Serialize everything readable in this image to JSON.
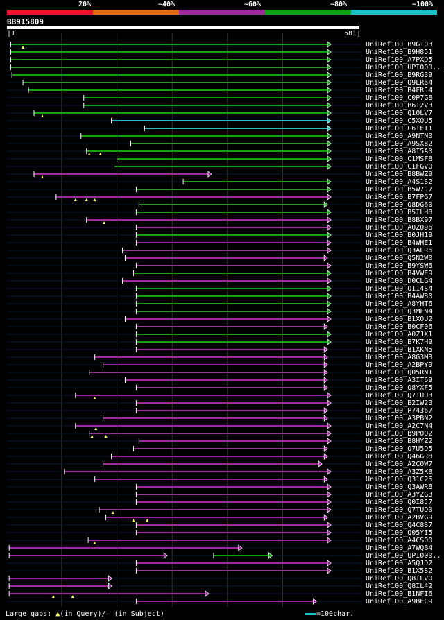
{
  "colors": {
    "c20": "#e8142c",
    "c40": "#e06d1a",
    "c60": "#9c2a9c",
    "c80": "#13a013",
    "c100": "#1fbec6",
    "bg": "#000000",
    "grid": "#333333",
    "row": "#0a1a3a"
  },
  "legend": {
    "p20": "20%",
    "p40": "~40%",
    "p60": "~60%",
    "p80": "~80%",
    "p100": "~100%"
  },
  "query": {
    "id": "BB915809",
    "start": "1",
    "end": "581",
    "length": 581
  },
  "footer": {
    "gaps_label": "Large gaps:",
    "query_text": "(in Query)/",
    "subject_text": "(in Subject)",
    "scale_text": "=100char."
  },
  "hits": [
    {
      "name": "UniRef100_B9GT03",
      "s": 8,
      "e": 581,
      "c": "c80",
      "marks": [
        30
      ]
    },
    {
      "name": "UniRef100_B9H851",
      "s": 8,
      "e": 581,
      "c": "c80",
      "marks": []
    },
    {
      "name": "UniRef100_A7PXD5",
      "s": 8,
      "e": 581,
      "c": "c80",
      "marks": []
    },
    {
      "name": "UniRef100_UPI000..",
      "s": 8,
      "e": 581,
      "c": "c80",
      "marks": []
    },
    {
      "name": "UniRef100_B9RG39",
      "s": 10,
      "e": 581,
      "c": "c80",
      "marks": []
    },
    {
      "name": "UniRef100_Q9LR64",
      "s": 30,
      "e": 581,
      "c": "c80",
      "marks": []
    },
    {
      "name": "UniRef100_B4FRJ4",
      "s": 40,
      "e": 581,
      "c": "c80",
      "marks": []
    },
    {
      "name": "UniRef100_C0P7G8",
      "s": 140,
      "e": 581,
      "c": "c80",
      "marks": []
    },
    {
      "name": "UniRef100_B6T2V3",
      "s": 140,
      "e": 581,
      "c": "c80",
      "marks": []
    },
    {
      "name": "UniRef100_Q10LV7",
      "s": 50,
      "e": 581,
      "c": "c80",
      "marks": [
        65
      ]
    },
    {
      "name": "UniRef100_C5XOU5",
      "s": 190,
      "e": 581,
      "c": "c100",
      "marks": []
    },
    {
      "name": "UniRef100_C6TEI1",
      "s": 250,
      "e": 581,
      "c": "c100",
      "marks": []
    },
    {
      "name": "UniRef100_A9NTN0",
      "s": 135,
      "e": 581,
      "c": "c80",
      "marks": []
    },
    {
      "name": "UniRef100_A9SX82",
      "s": 225,
      "e": 581,
      "c": "c80",
      "marks": []
    },
    {
      "name": "UniRef100_A8I5A0",
      "s": 145,
      "e": 581,
      "c": "c80",
      "marks": [
        150,
        170
      ]
    },
    {
      "name": "UniRef100_C1MSF8",
      "s": 200,
      "e": 581,
      "c": "c80",
      "marks": []
    },
    {
      "name": "UniRef100_C1FGV0",
      "s": 195,
      "e": 581,
      "c": "c80",
      "marks": []
    },
    {
      "name": "UniRef100_B8BWZ9",
      "s": 50,
      "e": 365,
      "c": "c60",
      "marks": [
        65
      ]
    },
    {
      "name": "UniRef100_A4S1S2",
      "s": 320,
      "e": 581,
      "c": "c80",
      "marks": []
    },
    {
      "name": "UniRef100_B5W7J7",
      "s": 235,
      "e": 581,
      "c": "c80",
      "marks": []
    },
    {
      "name": "UniRef100_B7FPG7",
      "s": 90,
      "e": 581,
      "c": "c60",
      "marks": [
        125,
        145,
        160
      ]
    },
    {
      "name": "UniRef100_Q8DG60",
      "s": 240,
      "e": 575,
      "c": "c80",
      "marks": []
    },
    {
      "name": "UniRef100_B5ILH8",
      "s": 235,
      "e": 581,
      "c": "c80",
      "marks": []
    },
    {
      "name": "UniRef100_B8BX97",
      "s": 145,
      "e": 581,
      "c": "c60",
      "marks": [
        177
      ]
    },
    {
      "name": "UniRef100_A0Z096",
      "s": 235,
      "e": 581,
      "c": "c60",
      "marks": []
    },
    {
      "name": "UniRef100_B0JH19",
      "s": 235,
      "e": 581,
      "c": "c80",
      "marks": []
    },
    {
      "name": "UniRef100_B4WHE1",
      "s": 235,
      "e": 581,
      "c": "c60",
      "marks": []
    },
    {
      "name": "UniRef100_Q3ALR6",
      "s": 210,
      "e": 581,
      "c": "c60",
      "marks": []
    },
    {
      "name": "UniRef100_Q5N2W0",
      "s": 215,
      "e": 575,
      "c": "c60",
      "marks": []
    },
    {
      "name": "UniRef100_B9YSW6",
      "s": 235,
      "e": 581,
      "c": "c60",
      "marks": []
    },
    {
      "name": "UniRef100_B4VWE9",
      "s": 230,
      "e": 581,
      "c": "c80",
      "marks": []
    },
    {
      "name": "UniRef100_D0CLG4",
      "s": 210,
      "e": 581,
      "c": "c60",
      "marks": []
    },
    {
      "name": "UniRef100_Q114S4",
      "s": 235,
      "e": 581,
      "c": "c80",
      "marks": []
    },
    {
      "name": "UniRef100_B4AW80",
      "s": 235,
      "e": 581,
      "c": "c80",
      "marks": []
    },
    {
      "name": "UniRef100_A8YHT6",
      "s": 235,
      "e": 581,
      "c": "c80",
      "marks": []
    },
    {
      "name": "UniRef100_Q3MFN4",
      "s": 235,
      "e": 581,
      "c": "c80",
      "marks": []
    },
    {
      "name": "UniRef100_B1XOU2",
      "s": 215,
      "e": 581,
      "c": "c60",
      "marks": []
    },
    {
      "name": "UniRef100_B0CF06",
      "s": 235,
      "e": 575,
      "c": "c60",
      "marks": []
    },
    {
      "name": "UniRef100_A0ZJX1",
      "s": 235,
      "e": 581,
      "c": "c80",
      "marks": []
    },
    {
      "name": "UniRef100_B7K7H9",
      "s": 235,
      "e": 581,
      "c": "c80",
      "marks": []
    },
    {
      "name": "UniRef100_B1XKN5",
      "s": 235,
      "e": 575,
      "c": "c60",
      "marks": []
    },
    {
      "name": "UniRef100_A8G3M3",
      "s": 160,
      "e": 575,
      "c": "c60",
      "marks": []
    },
    {
      "name": "UniRef100_A2BPY9",
      "s": 175,
      "e": 575,
      "c": "c60",
      "marks": []
    },
    {
      "name": "UniRef100_Q05RN1",
      "s": 150,
      "e": 575,
      "c": "c60",
      "marks": []
    },
    {
      "name": "UniRef100_A3IT69",
      "s": 215,
      "e": 575,
      "c": "c60",
      "marks": []
    },
    {
      "name": "UniRef100_Q8YXF5",
      "s": 235,
      "e": 575,
      "c": "c60",
      "marks": []
    },
    {
      "name": "UniRef100_Q7TUU3",
      "s": 125,
      "e": 581,
      "c": "c60",
      "marks": [
        160
      ]
    },
    {
      "name": "UniRef100_B2IW23",
      "s": 235,
      "e": 581,
      "c": "c60",
      "marks": []
    },
    {
      "name": "UniRef100_P74367",
      "s": 235,
      "e": 575,
      "c": "c60",
      "marks": []
    },
    {
      "name": "UniRef100_A3PBN2",
      "s": 175,
      "e": 575,
      "c": "c60",
      "marks": []
    },
    {
      "name": "UniRef100_A2C7N4",
      "s": 125,
      "e": 581,
      "c": "c60",
      "marks": [
        162
      ]
    },
    {
      "name": "UniRef100_B9P0Q2",
      "s": 150,
      "e": 581,
      "c": "c60",
      "marks": [
        155,
        180
      ]
    },
    {
      "name": "UniRef100_B8HYZ2",
      "s": 240,
      "e": 581,
      "c": "c60",
      "marks": []
    },
    {
      "name": "UniRef100_Q7U5D5",
      "s": 230,
      "e": 575,
      "c": "c60",
      "marks": []
    },
    {
      "name": "UniRef100_Q46GR8",
      "s": 190,
      "e": 575,
      "c": "c60",
      "marks": []
    },
    {
      "name": "UniRef100_A2C0W7",
      "s": 175,
      "e": 565,
      "c": "c60",
      "marks": []
    },
    {
      "name": "UniRef100_A3Z5K8",
      "s": 105,
      "e": 581,
      "c": "c60",
      "marks": []
    },
    {
      "name": "UniRef100_Q31C26",
      "s": 160,
      "e": 575,
      "c": "c60",
      "marks": []
    },
    {
      "name": "UniRef100_Q3AWR8",
      "s": 235,
      "e": 581,
      "c": "c60",
      "marks": []
    },
    {
      "name": "UniRef100_A3YZG3",
      "s": 235,
      "e": 581,
      "c": "c60",
      "marks": []
    },
    {
      "name": "UniRef100_Q0I8J7",
      "s": 235,
      "e": 581,
      "c": "c60",
      "marks": []
    },
    {
      "name": "UniRef100_Q7TUD0",
      "s": 168,
      "e": 581,
      "c": "c60",
      "marks": [
        193
      ]
    },
    {
      "name": "UniRef100_A2BVG9",
      "s": 180,
      "e": 575,
      "c": "c60",
      "marks": [
        230,
        255
      ]
    },
    {
      "name": "UniRef100_Q4C8S7",
      "s": 235,
      "e": 581,
      "c": "c60",
      "marks": []
    },
    {
      "name": "UniRef100_Q05YI5",
      "s": 235,
      "e": 581,
      "c": "c60",
      "marks": []
    },
    {
      "name": "UniRef100_A4CS00",
      "s": 148,
      "e": 581,
      "c": "c60",
      "marks": [
        160
      ]
    },
    {
      "name": "UniRef100_A7WQB4",
      "s": 5,
      "e": 420,
      "c": "c60",
      "marks": []
    },
    {
      "name": "UniRef100_UPI000..",
      "s": 5,
      "e": 285,
      "c": "c60",
      "marks": [],
      "s2": 375,
      "e2": 475,
      "c2": "c80"
    },
    {
      "name": "UniRef100_A5QJD2",
      "s": 235,
      "e": 581,
      "c": "c60",
      "marks": []
    },
    {
      "name": "UniRef100_B1X5S2",
      "s": 235,
      "e": 581,
      "c": "c60",
      "marks": []
    },
    {
      "name": "UniRef100_Q8ILV0",
      "s": 5,
      "e": 185,
      "c": "c60",
      "marks": []
    },
    {
      "name": "UniRef100_Q8IL42",
      "s": 5,
      "e": 185,
      "c": "c60",
      "marks": []
    },
    {
      "name": "UniRef100_B1NFI6",
      "s": 5,
      "e": 360,
      "c": "c60",
      "marks": [
        85,
        120
      ]
    },
    {
      "name": "UniRef100_A9BEC9",
      "s": 235,
      "e": 555,
      "c": "c60",
      "marks": []
    }
  ]
}
